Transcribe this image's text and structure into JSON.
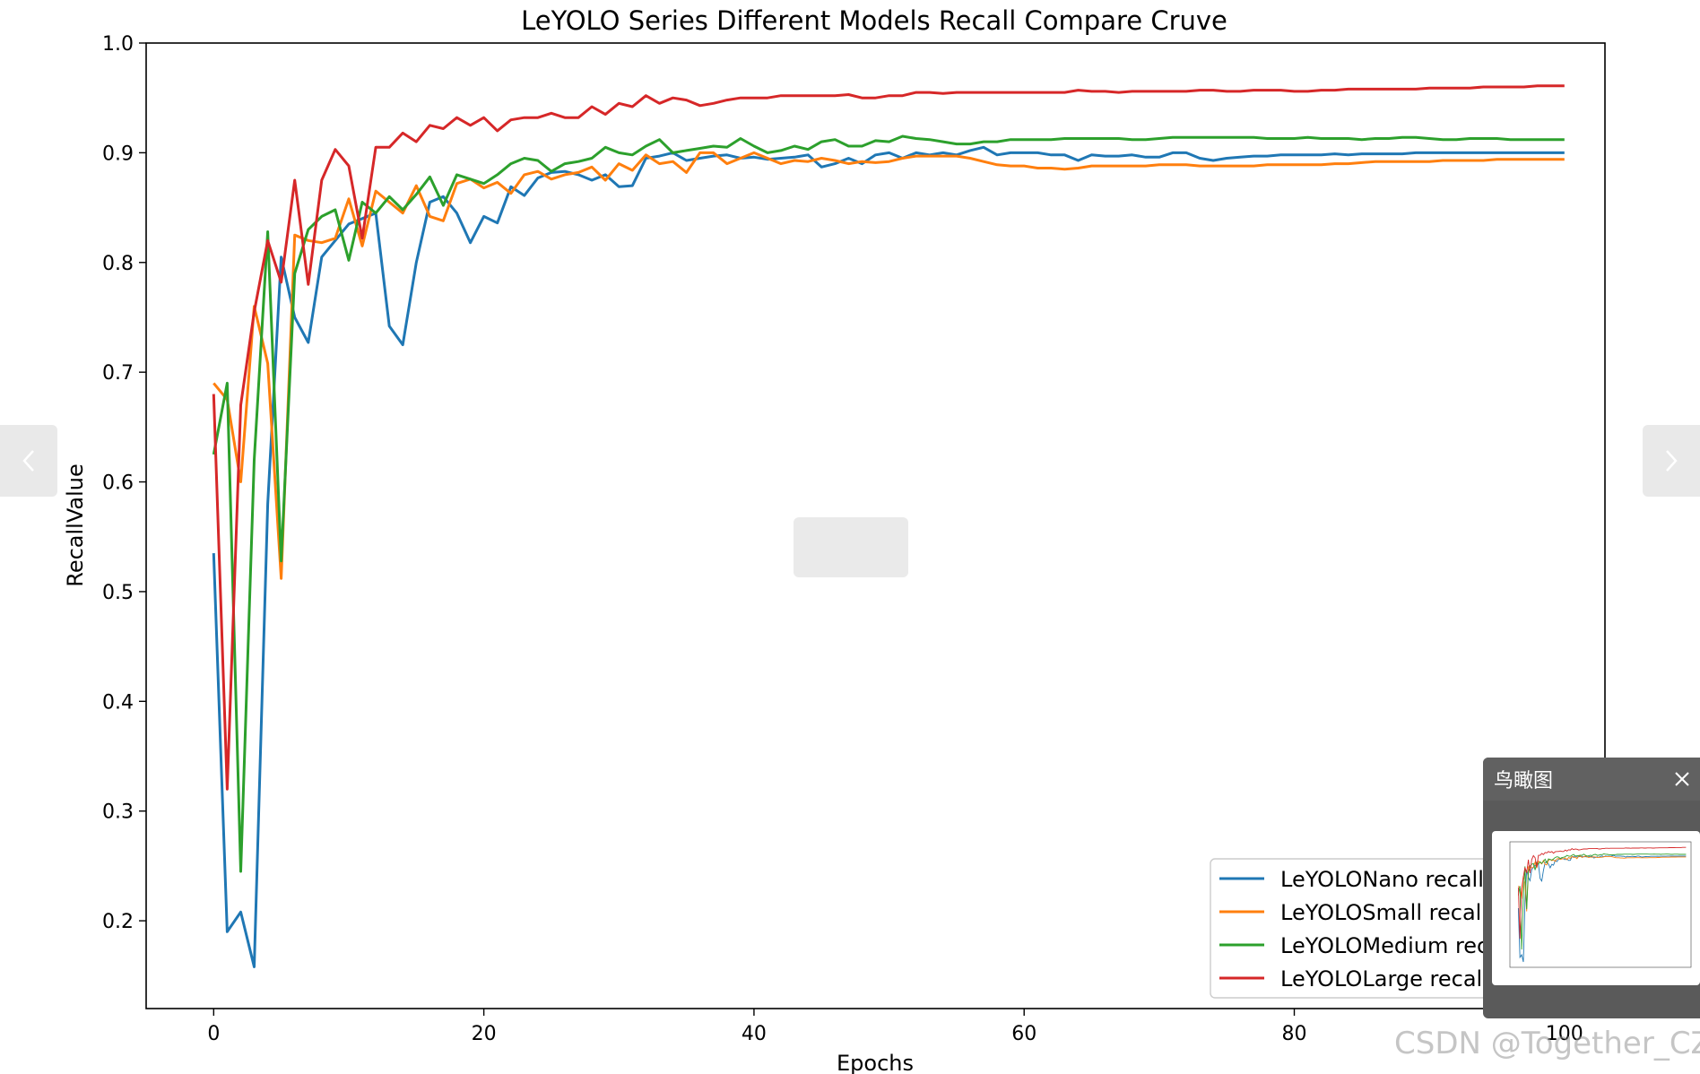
{
  "chart_data": {
    "type": "line",
    "title": "LeYOLO Series Different Models Recall Compare Cruve",
    "xlabel": "Epochs",
    "ylabel": "RecallValue",
    "xlim": [
      -5,
      103
    ],
    "ylim": [
      0.12,
      1.0
    ],
    "xticks": [
      "0",
      "20",
      "40",
      "60",
      "80",
      "100"
    ],
    "xtick_values": [
      0,
      20,
      40,
      60,
      80,
      100
    ],
    "yticks": [
      "0.2",
      "0.3",
      "0.4",
      "0.5",
      "0.6",
      "0.7",
      "0.8",
      "0.9",
      "1.0"
    ],
    "ytick_values": [
      0.2,
      0.3,
      0.4,
      0.5,
      0.6,
      0.7,
      0.8,
      0.9,
      1.0
    ],
    "grid": false,
    "legend_position": "lower-right",
    "series": [
      {
        "name": "LeYOLONano recall",
        "color": "#1f77b4",
        "values": [
          0.535,
          0.19,
          0.208,
          0.158,
          0.58,
          0.805,
          0.75,
          0.727,
          0.805,
          0.82,
          0.835,
          0.84,
          0.845,
          0.742,
          0.725,
          0.8,
          0.855,
          0.86,
          0.845,
          0.818,
          0.842,
          0.836,
          0.869,
          0.861,
          0.877,
          0.882,
          0.883,
          0.88,
          0.875,
          0.88,
          0.869,
          0.87,
          0.895,
          0.897,
          0.9,
          0.893,
          0.895,
          0.897,
          0.898,
          0.895,
          0.896,
          0.894,
          0.895,
          0.896,
          0.898,
          0.887,
          0.89,
          0.895,
          0.89,
          0.898,
          0.9,
          0.895,
          0.9,
          0.898,
          0.9,
          0.898,
          0.902,
          0.905,
          0.898,
          0.9,
          0.9,
          0.9,
          0.898,
          0.898,
          0.893,
          0.898,
          0.897,
          0.897,
          0.898,
          0.896,
          0.896,
          0.9,
          0.9,
          0.895,
          0.893,
          0.895,
          0.896,
          0.897,
          0.897,
          0.898,
          0.898,
          0.898,
          0.898,
          0.899,
          0.898,
          0.899,
          0.899,
          0.899,
          0.899,
          0.9,
          0.9,
          0.9,
          0.9,
          0.9,
          0.9,
          0.9,
          0.9,
          0.9,
          0.9,
          0.9,
          0.9
        ]
      },
      {
        "name": "LeYOLOSmall recall",
        "color": "#ff7f0e",
        "values": [
          0.69,
          0.675,
          0.6,
          0.76,
          0.708,
          0.512,
          0.825,
          0.82,
          0.818,
          0.822,
          0.858,
          0.815,
          0.865,
          0.855,
          0.845,
          0.87,
          0.842,
          0.838,
          0.872,
          0.876,
          0.868,
          0.873,
          0.863,
          0.88,
          0.883,
          0.876,
          0.88,
          0.882,
          0.887,
          0.875,
          0.89,
          0.884,
          0.898,
          0.89,
          0.892,
          0.882,
          0.9,
          0.9,
          0.89,
          0.895,
          0.9,
          0.895,
          0.89,
          0.893,
          0.892,
          0.895,
          0.893,
          0.89,
          0.892,
          0.891,
          0.892,
          0.895,
          0.897,
          0.897,
          0.897,
          0.897,
          0.895,
          0.892,
          0.889,
          0.888,
          0.888,
          0.886,
          0.886,
          0.885,
          0.886,
          0.888,
          0.888,
          0.888,
          0.888,
          0.888,
          0.889,
          0.889,
          0.889,
          0.888,
          0.888,
          0.888,
          0.888,
          0.888,
          0.889,
          0.889,
          0.889,
          0.889,
          0.889,
          0.89,
          0.89,
          0.891,
          0.892,
          0.892,
          0.892,
          0.892,
          0.892,
          0.893,
          0.893,
          0.893,
          0.893,
          0.894,
          0.894,
          0.894,
          0.894,
          0.894,
          0.894
        ]
      },
      {
        "name": "LeYOLOMedium recall",
        "color": "#2ca02c",
        "values": [
          0.625,
          0.69,
          0.245,
          0.62,
          0.828,
          0.528,
          0.79,
          0.83,
          0.842,
          0.848,
          0.802,
          0.855,
          0.845,
          0.86,
          0.848,
          0.862,
          0.878,
          0.852,
          0.88,
          0.876,
          0.872,
          0.88,
          0.89,
          0.895,
          0.893,
          0.883,
          0.89,
          0.892,
          0.895,
          0.905,
          0.9,
          0.898,
          0.906,
          0.912,
          0.9,
          0.902,
          0.904,
          0.906,
          0.905,
          0.913,
          0.906,
          0.9,
          0.902,
          0.906,
          0.903,
          0.91,
          0.912,
          0.906,
          0.906,
          0.911,
          0.91,
          0.915,
          0.913,
          0.912,
          0.91,
          0.908,
          0.908,
          0.91,
          0.91,
          0.912,
          0.912,
          0.912,
          0.912,
          0.913,
          0.913,
          0.913,
          0.913,
          0.913,
          0.912,
          0.912,
          0.913,
          0.914,
          0.914,
          0.914,
          0.914,
          0.914,
          0.914,
          0.914,
          0.913,
          0.913,
          0.913,
          0.914,
          0.913,
          0.913,
          0.913,
          0.912,
          0.913,
          0.913,
          0.914,
          0.914,
          0.913,
          0.912,
          0.912,
          0.913,
          0.913,
          0.913,
          0.912,
          0.912,
          0.912,
          0.912,
          0.912
        ]
      },
      {
        "name": "LeYOLOLarge recall",
        "color": "#d62728",
        "values": [
          0.68,
          0.32,
          0.67,
          0.755,
          0.82,
          0.782,
          0.875,
          0.78,
          0.875,
          0.903,
          0.888,
          0.822,
          0.905,
          0.905,
          0.918,
          0.91,
          0.925,
          0.922,
          0.932,
          0.925,
          0.932,
          0.92,
          0.93,
          0.932,
          0.932,
          0.936,
          0.932,
          0.932,
          0.942,
          0.935,
          0.945,
          0.942,
          0.952,
          0.945,
          0.95,
          0.948,
          0.943,
          0.945,
          0.948,
          0.95,
          0.95,
          0.95,
          0.952,
          0.952,
          0.952,
          0.952,
          0.952,
          0.953,
          0.95,
          0.95,
          0.952,
          0.952,
          0.955,
          0.955,
          0.954,
          0.955,
          0.955,
          0.955,
          0.955,
          0.955,
          0.955,
          0.955,
          0.955,
          0.955,
          0.957,
          0.956,
          0.956,
          0.955,
          0.956,
          0.956,
          0.956,
          0.956,
          0.956,
          0.957,
          0.957,
          0.956,
          0.956,
          0.957,
          0.957,
          0.957,
          0.956,
          0.956,
          0.957,
          0.957,
          0.958,
          0.958,
          0.958,
          0.958,
          0.958,
          0.958,
          0.959,
          0.959,
          0.959,
          0.959,
          0.96,
          0.96,
          0.96,
          0.96,
          0.961,
          0.961,
          0.961
        ]
      }
    ]
  },
  "overview": {
    "title": "鸟瞰图"
  },
  "watermark": "CSDN @Together_CZ",
  "icons": {
    "prev": "chevron-left-icon",
    "next": "chevron-right-icon",
    "close": "close-icon"
  }
}
